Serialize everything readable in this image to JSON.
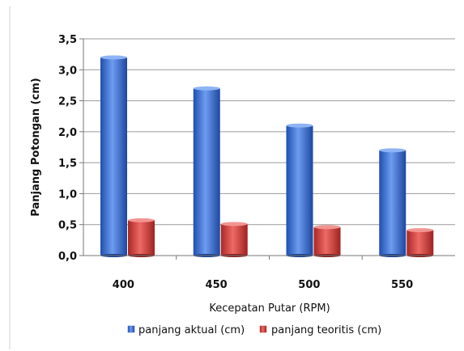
{
  "chart_data": {
    "type": "bar",
    "categories": [
      "400",
      "450",
      "500",
      "550"
    ],
    "series": [
      {
        "name": "panjang aktual (cm)",
        "values": [
          3.2,
          2.7,
          2.1,
          1.7
        ],
        "color": "#3a6fd0"
      },
      {
        "name": "panjang teoritis (cm)",
        "values": [
          0.57,
          0.51,
          0.46,
          0.41
        ],
        "color": "#d2403e"
      }
    ],
    "xlabel": "Kecepatan Putar (RPM)",
    "ylabel": "Panjang Potongan (cm)",
    "ylim": [
      0,
      3.5
    ],
    "yticks": [
      0,
      0.5,
      1,
      1.5,
      2,
      2.5,
      3,
      3.5
    ],
    "ytick_labels": [
      "0,0",
      "0,5",
      "1,0",
      "1,5",
      "2,0",
      "2,5",
      "3,0",
      "3,5"
    ],
    "grid": true,
    "legend": "bottom",
    "style": "3d-cylinder"
  }
}
